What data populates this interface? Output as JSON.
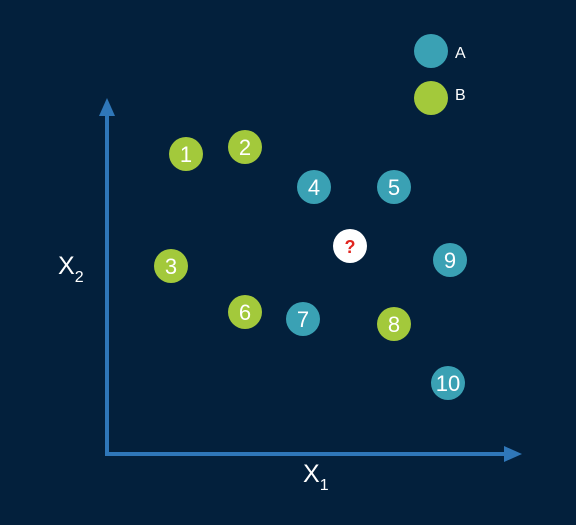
{
  "colors": {
    "background": "#03203c",
    "axis": "#2f77b9",
    "class_a": "#3aa1b4",
    "class_b": "#a3c93b",
    "query_fill": "#ffffff",
    "query_mark": "#e0251f",
    "text": "#ffffff"
  },
  "axes": {
    "x_label": "X",
    "x_sub": "1",
    "y_label": "X",
    "y_sub": "2"
  },
  "legend": [
    {
      "label": "A",
      "class": "A"
    },
    {
      "label": "B",
      "class": "B"
    }
  ],
  "points": [
    {
      "label": "1",
      "class": "B"
    },
    {
      "label": "2",
      "class": "B"
    },
    {
      "label": "3",
      "class": "B"
    },
    {
      "label": "4",
      "class": "A"
    },
    {
      "label": "5",
      "class": "A"
    },
    {
      "label": "6",
      "class": "B"
    },
    {
      "label": "7",
      "class": "A"
    },
    {
      "label": "8",
      "class": "B"
    },
    {
      "label": "9",
      "class": "A"
    },
    {
      "label": "10",
      "class": "A"
    }
  ],
  "query": {
    "label": "?"
  }
}
